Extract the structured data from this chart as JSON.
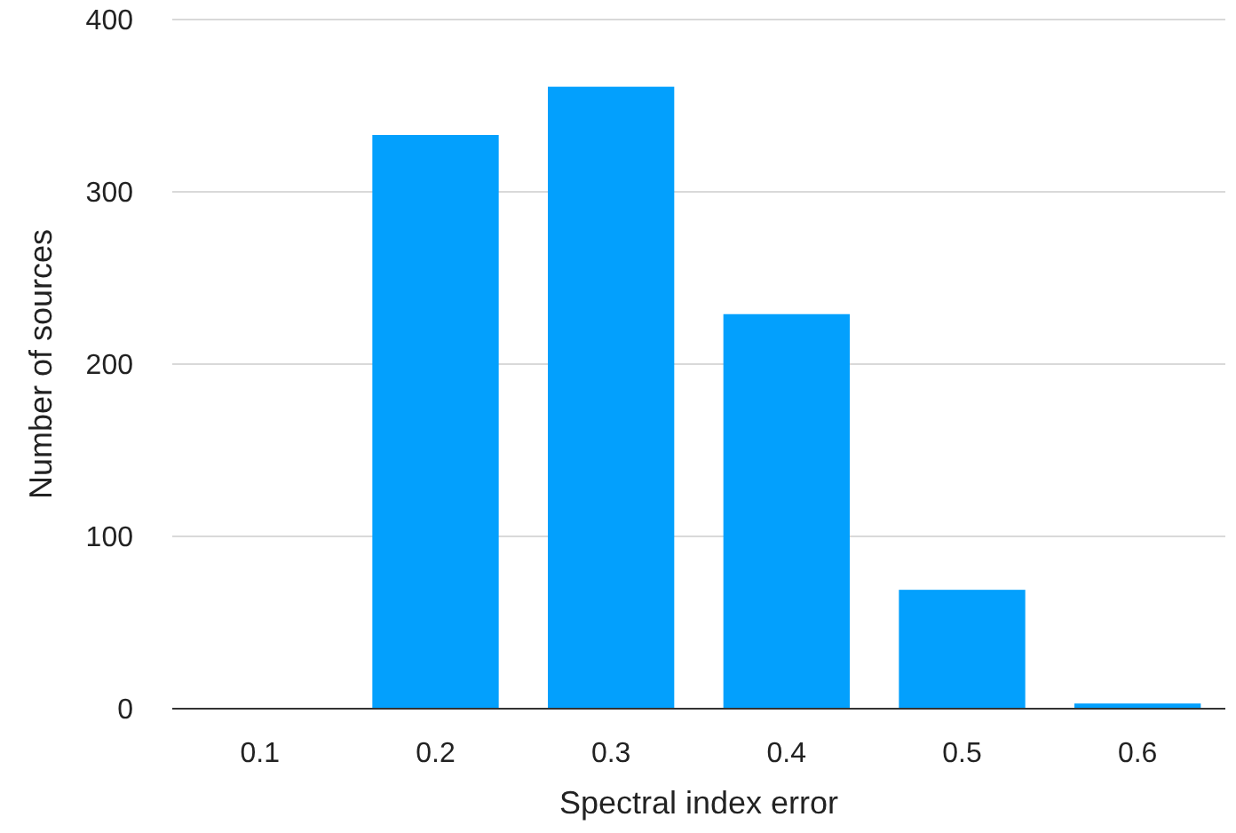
{
  "chart_data": {
    "type": "bar",
    "xlabel": "Spectral index error",
    "ylabel": "Number of sources",
    "categories": [
      "0.1",
      "0.2",
      "0.3",
      "0.4",
      "0.5",
      "0.6"
    ],
    "values": [
      0,
      333,
      361,
      229,
      69,
      3
    ],
    "color": "#03a0fd",
    "ylim": [
      0,
      400
    ],
    "yticks": [
      0,
      100,
      200,
      300,
      400
    ],
    "grid": "y"
  }
}
